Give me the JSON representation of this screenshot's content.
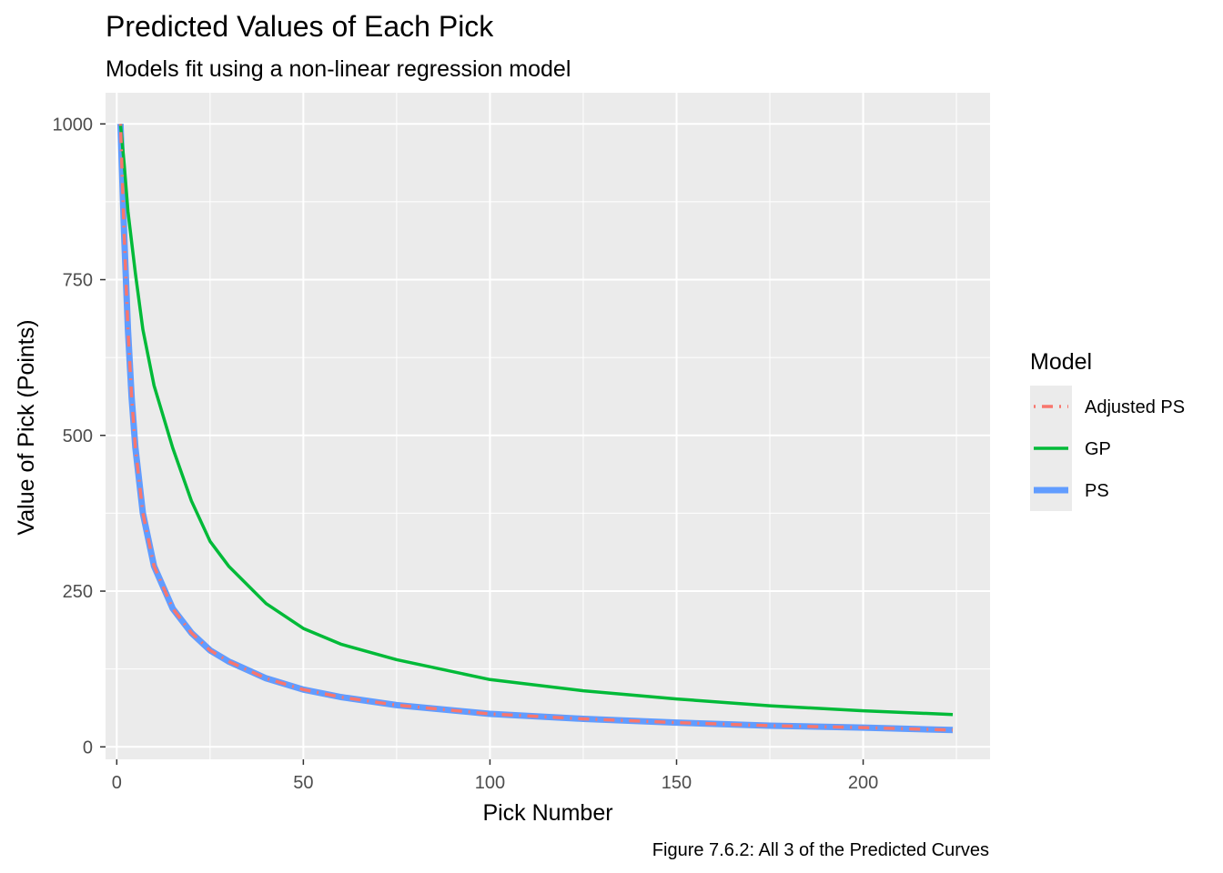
{
  "chart_data": {
    "type": "line",
    "title": "Predicted Values of Each Pick",
    "subtitle": "Models fit using a non-linear regression model",
    "xlabel": "Pick Number",
    "ylabel": "Value of Pick (Points)",
    "caption": "Figure 7.6.2: All 3 of the Predicted Curves",
    "xlim": [
      -3,
      234
    ],
    "ylim": [
      -20,
      1050
    ],
    "x_ticks": [
      0,
      50,
      100,
      150,
      200
    ],
    "y_ticks": [
      0,
      250,
      500,
      750,
      1000
    ],
    "x_tick_labels": [
      "0",
      "50",
      "100",
      "150",
      "200"
    ],
    "y_tick_labels": [
      "0",
      "250",
      "500",
      "750",
      "1000"
    ],
    "x_minor_ticks": [
      25,
      75,
      125,
      175,
      225
    ],
    "y_minor_ticks": [
      125,
      375,
      625,
      875
    ],
    "background": "#ebebeb",
    "grid": true,
    "legend_title": "Model",
    "legend_position": "right",
    "series": [
      {
        "name": "Adjusted PS",
        "color": "#f8766d",
        "style": "dotdash",
        "x": [
          1,
          2,
          3,
          4,
          5,
          7,
          10,
          15,
          20,
          25,
          30,
          40,
          50,
          60,
          75,
          100,
          125,
          150,
          175,
          200,
          224
        ],
        "values": [
          1000,
          820,
          670,
          560,
          480,
          375,
          290,
          222,
          183,
          155,
          137,
          110,
          92,
          80,
          67,
          53,
          45,
          39,
          34,
          31,
          27
        ]
      },
      {
        "name": "GP",
        "color": "#00ba38",
        "style": "solid",
        "x": [
          1,
          2,
          3,
          5,
          7,
          10,
          15,
          20,
          25,
          30,
          40,
          50,
          60,
          75,
          100,
          125,
          150,
          175,
          200,
          224
        ],
        "values": [
          1000,
          935,
          860,
          760,
          670,
          580,
          480,
          395,
          330,
          290,
          230,
          190,
          165,
          140,
          108,
          90,
          77,
          66,
          58,
          52
        ]
      },
      {
        "name": "PS",
        "color": "#619cff",
        "style": "thick",
        "x": [
          1,
          2,
          3,
          4,
          5,
          7,
          10,
          15,
          20,
          25,
          30,
          40,
          50,
          60,
          75,
          100,
          125,
          150,
          175,
          200,
          224
        ],
        "values": [
          1000,
          820,
          670,
          560,
          480,
          375,
          290,
          222,
          183,
          155,
          137,
          110,
          92,
          80,
          67,
          53,
          45,
          39,
          34,
          31,
          27
        ]
      }
    ]
  }
}
